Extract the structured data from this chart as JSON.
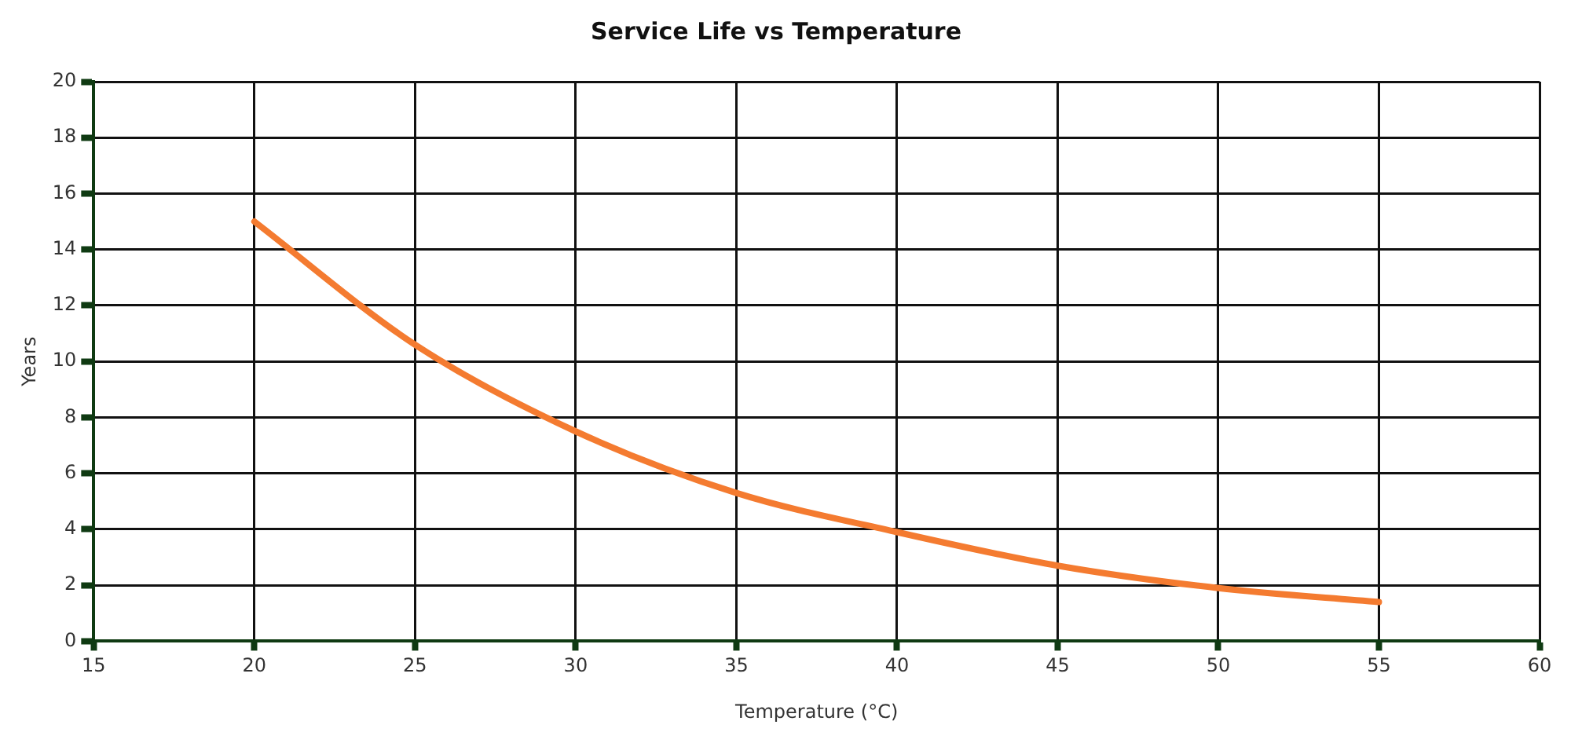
{
  "chart_data": {
    "type": "line",
    "title": "Service Life vs Temperature",
    "xlabel": "Temperature (°C)",
    "ylabel": "Years",
    "x": [
      20,
      25,
      30,
      35,
      40,
      45,
      50,
      55
    ],
    "series": [
      {
        "color": "#f47b30",
        "values": [
          15,
          10.6,
          7.5,
          5.3,
          3.9,
          2.7,
          1.9,
          1.4
        ]
      }
    ],
    "xlim": [
      15,
      60
    ],
    "xticks": [
      15,
      20,
      25,
      30,
      35,
      40,
      45,
      50,
      55,
      60
    ],
    "ylim": [
      0,
      20
    ],
    "yticks": [
      0,
      2,
      4,
      6,
      8,
      10,
      12,
      14,
      16,
      18,
      20
    ],
    "grid": true,
    "legend": false,
    "marker": "none",
    "line_style": "solid"
  }
}
